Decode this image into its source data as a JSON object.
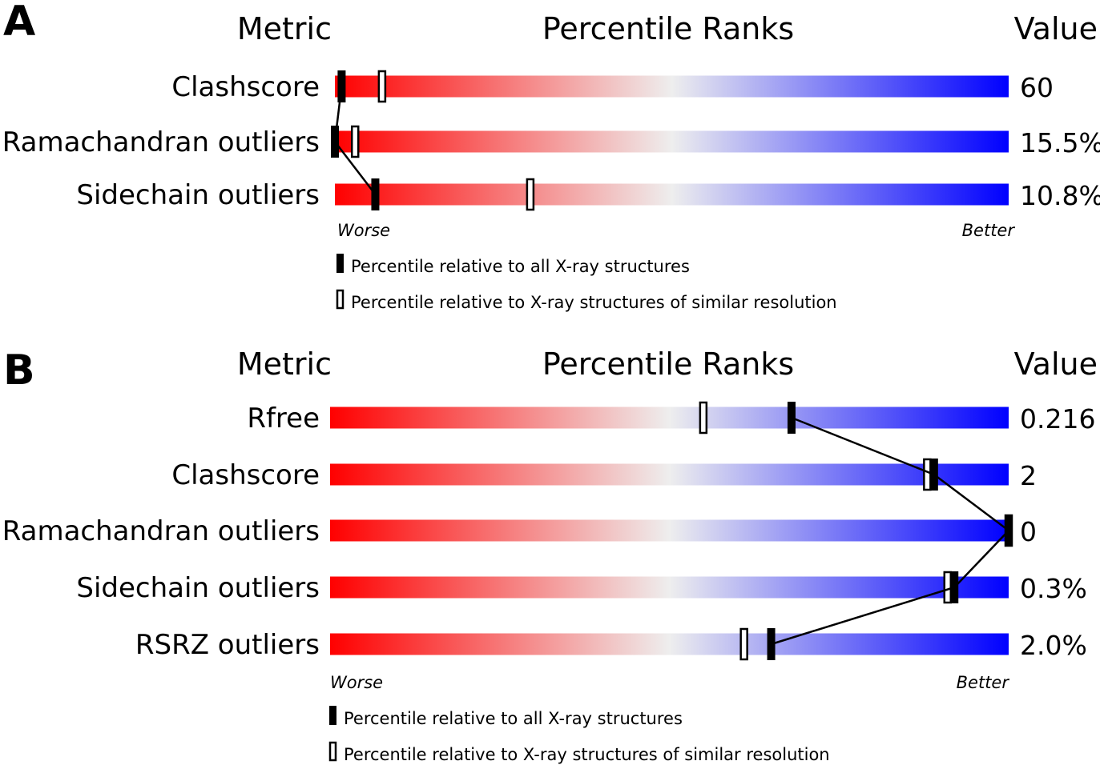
{
  "colors": {
    "worse": "#ff0000",
    "middle": "#eeeeee",
    "better": "#0000ff",
    "marker": "#000000"
  },
  "chart_data": [
    {
      "type": "percentile-slider",
      "panel": "A",
      "headers": {
        "metric": "Metric",
        "ranks": "Percentile Ranks",
        "value": "Value"
      },
      "scale": {
        "min": 0,
        "max": 100,
        "left_label": "Worse",
        "right_label": "Better"
      },
      "rows": [
        {
          "metric": "Clashscore",
          "value": "60",
          "percentile_all": 1,
          "percentile_similar": 7
        },
        {
          "metric": "Ramachandran outliers",
          "value": "15.5%",
          "percentile_all": 0,
          "percentile_similar": 3
        },
        {
          "metric": "Sidechain outliers",
          "value": "10.8%",
          "percentile_all": 6,
          "percentile_similar": 29
        }
      ],
      "legend": {
        "all": "Percentile relative to all X-ray structures",
        "similar": "Percentile relative to X-ray structures of similar resolution"
      }
    },
    {
      "type": "percentile-slider",
      "panel": "B",
      "headers": {
        "metric": "Metric",
        "ranks": "Percentile Ranks",
        "value": "Value"
      },
      "scale": {
        "min": 0,
        "max": 100,
        "left_label": "Worse",
        "right_label": "Better"
      },
      "rows": [
        {
          "metric": "Rfree",
          "value": "0.216",
          "percentile_all": 68,
          "percentile_similar": 55
        },
        {
          "metric": "Clashscore",
          "value": "2",
          "percentile_all": 89,
          "percentile_similar": 88
        },
        {
          "metric": "Ramachandran outliers",
          "value": "0",
          "percentile_all": 100,
          "percentile_similar": 100
        },
        {
          "metric": "Sidechain outliers",
          "value": "0.3%",
          "percentile_all": 92,
          "percentile_similar": 91
        },
        {
          "metric": "RSRZ outliers",
          "value": "2.0%",
          "percentile_all": 65,
          "percentile_similar": 61
        }
      ],
      "legend": {
        "all": "Percentile relative to all X-ray structures",
        "similar": "Percentile relative to X-ray structures of similar resolution"
      }
    }
  ]
}
